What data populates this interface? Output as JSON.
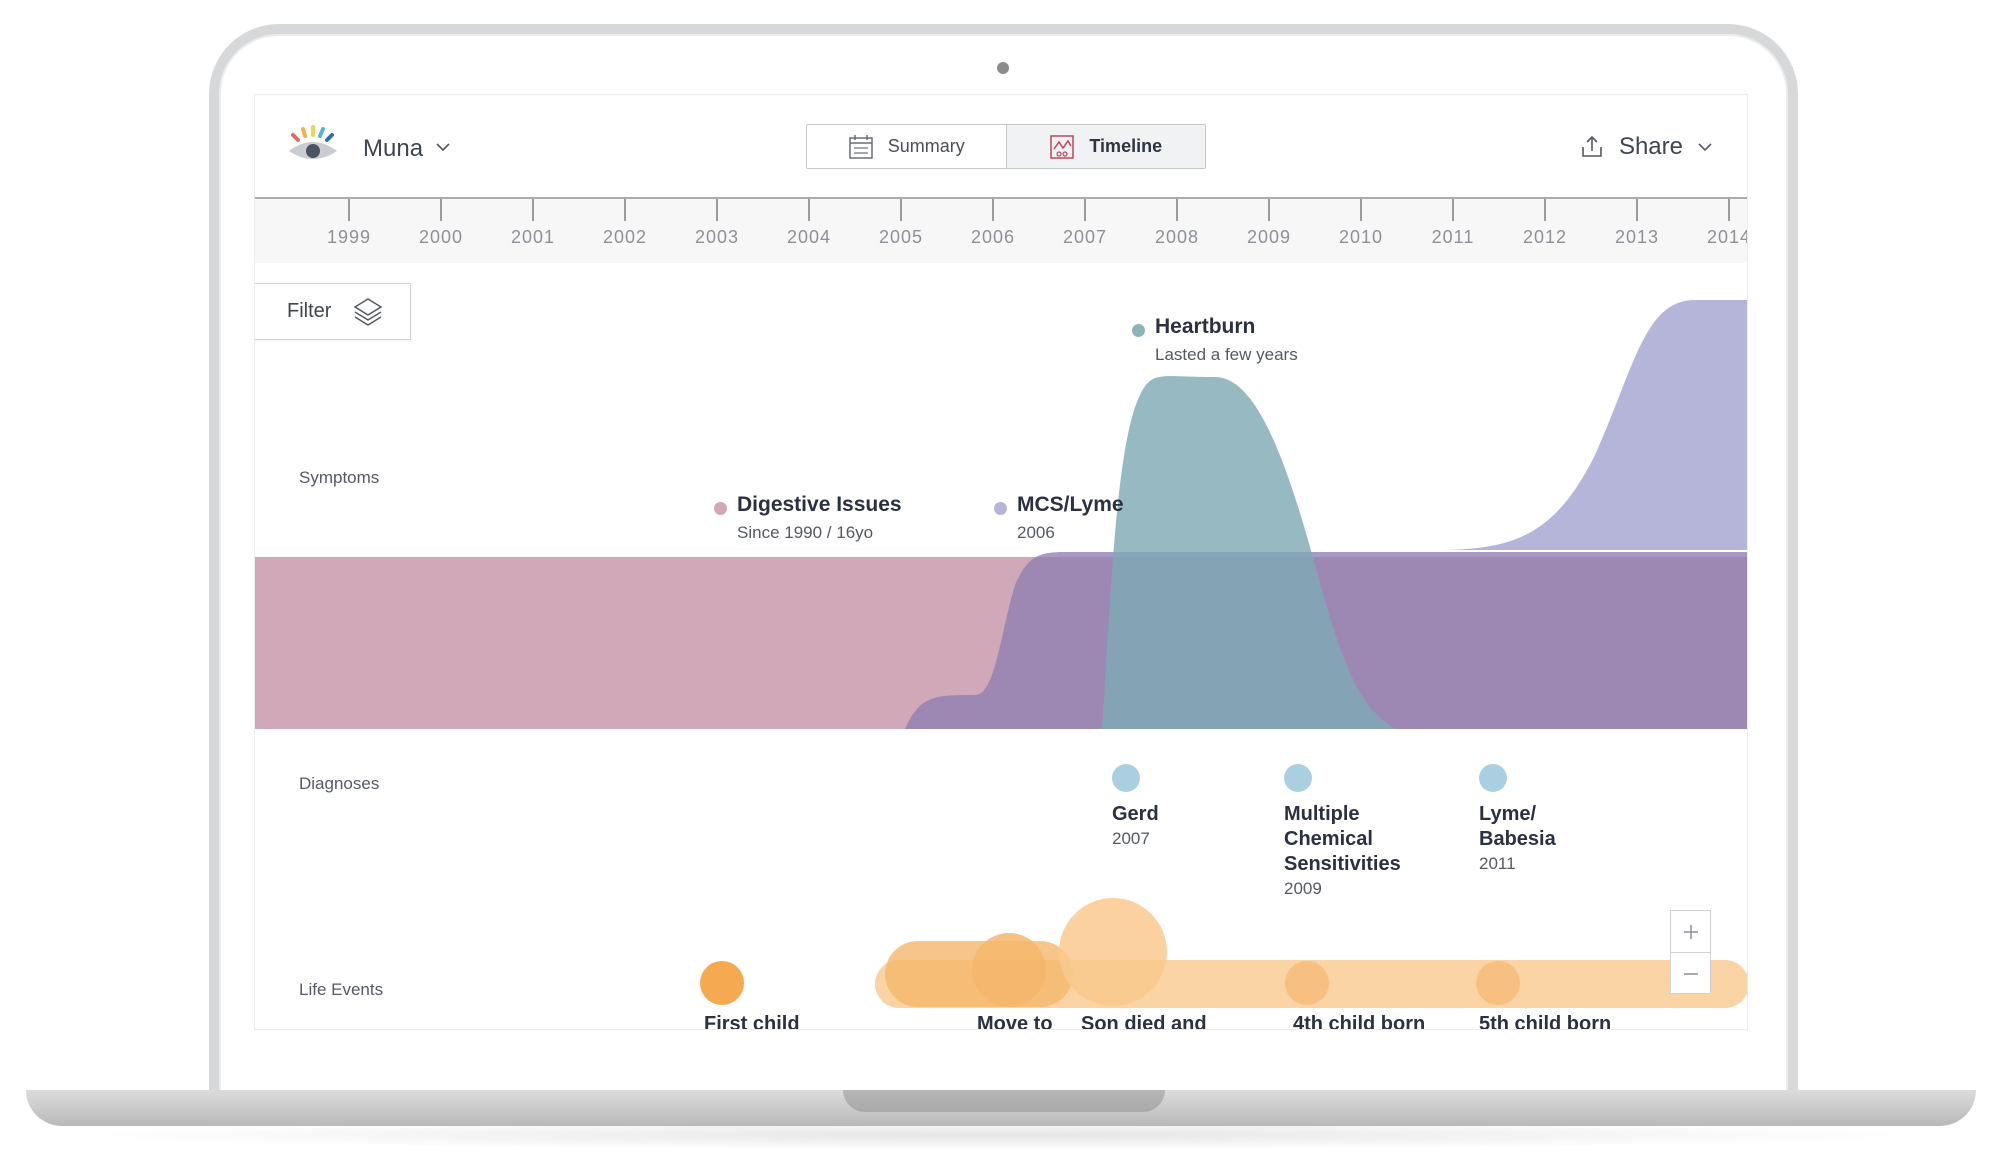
{
  "header": {
    "user_name": "Muna",
    "tabs": [
      {
        "label": "Summary",
        "icon": "calendar-icon",
        "active": false
      },
      {
        "label": "Timeline",
        "icon": "chart-icon",
        "active": true
      }
    ],
    "share_label": "Share",
    "filter_label": "Filter"
  },
  "timeline": {
    "years": [
      "1999",
      "2000",
      "2001",
      "2002",
      "2003",
      "2004",
      "2005",
      "2006",
      "2007",
      "2008",
      "2009",
      "2010",
      "2011",
      "2012",
      "2013",
      "2014"
    ]
  },
  "rows": {
    "symptoms": "Symptoms",
    "diagnoses": "Diagnoses",
    "life_events": "Life Events"
  },
  "symptoms": [
    {
      "name": "Digestive Issues",
      "detail": "Since 1990 / 16yo",
      "color": "#d1a8b8"
    },
    {
      "name": "MCS/Lyme",
      "detail": "2006",
      "color": "#b4b5d8"
    },
    {
      "name": "Heartburn",
      "detail": "Lasted a few years",
      "color": "#8fb3bc"
    }
  ],
  "diagnoses": [
    {
      "name": "Gerd",
      "year": "2007"
    },
    {
      "name": "Multiple Chemical Sensitivities",
      "year": "2009"
    },
    {
      "name": "Lyme/ Babesia",
      "year": "2011"
    }
  ],
  "life_events": [
    {
      "label": "First child"
    },
    {
      "label": "Move to"
    },
    {
      "label": "Son died and"
    },
    {
      "label": "4th child born"
    },
    {
      "label": "5th child born"
    }
  ],
  "colors": {
    "event_orange": "#f5a951",
    "event_light": "#f9cf9a",
    "diagnosis_dot": "#a9cfe1",
    "axis_bg": "#f7f7f7"
  }
}
